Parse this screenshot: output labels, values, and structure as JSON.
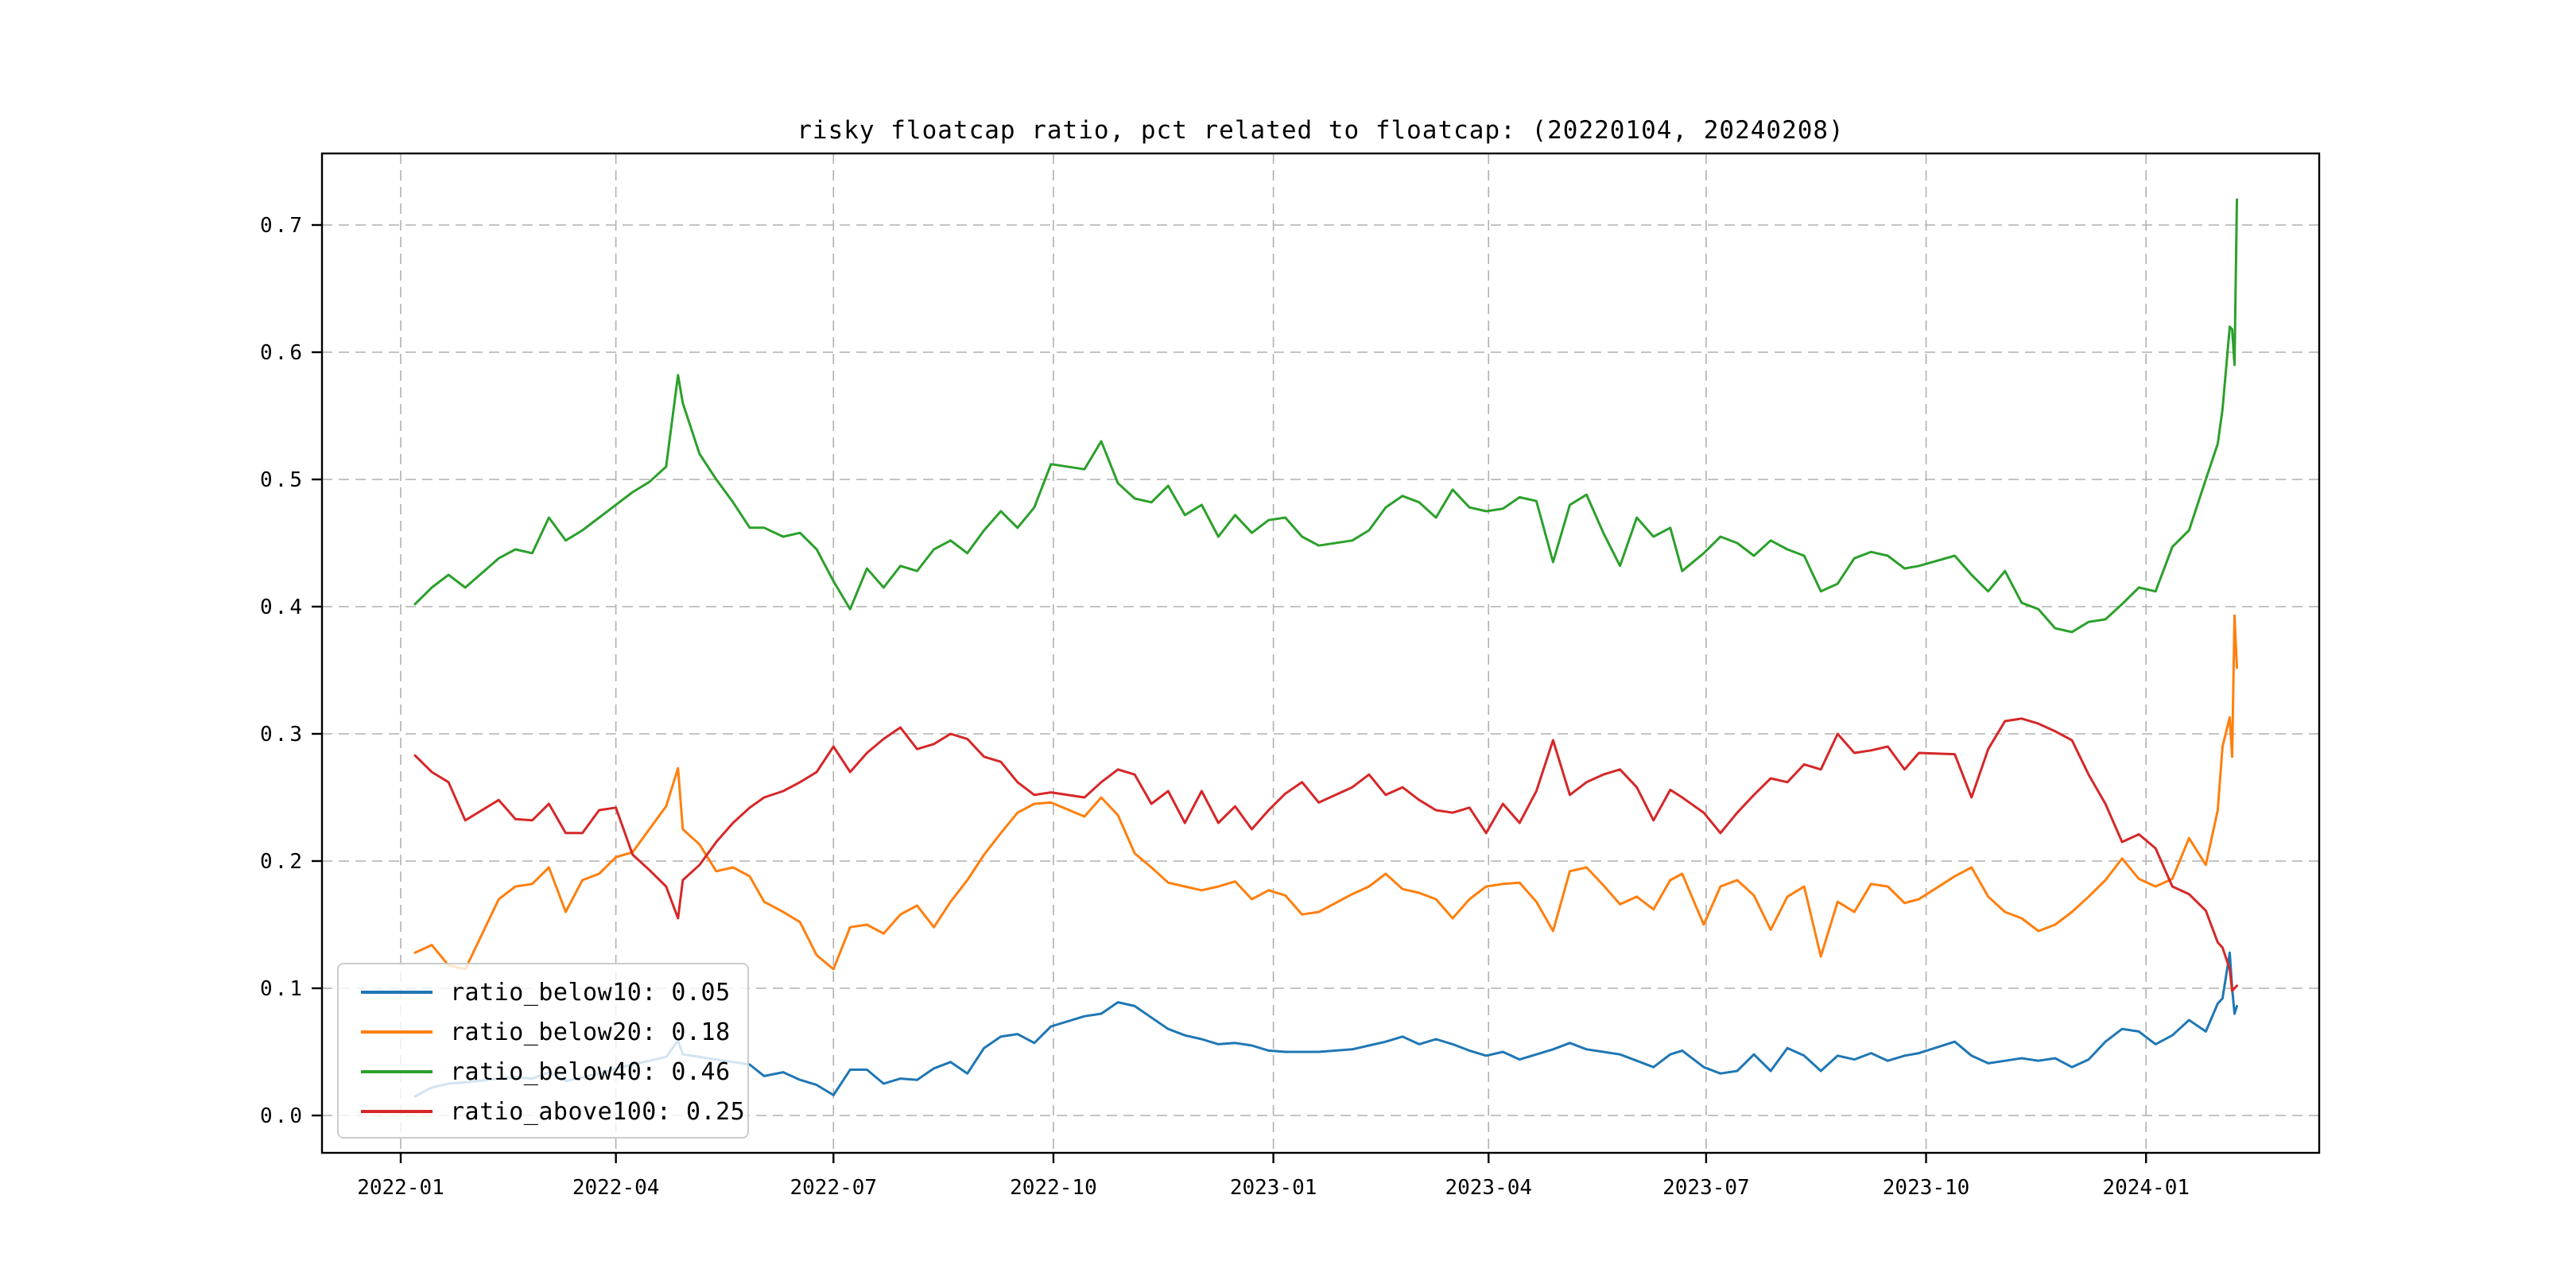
{
  "title": "risky floatcap ratio, pct related to floatcap: (20220104, 20240208)",
  "colors": {
    "blue": "#1f77b4",
    "orange": "#ff7f0e",
    "green": "#2ca02c",
    "red": "#d62728",
    "grid": "#b0b0b0",
    "spine": "#000000",
    "legend_border": "#cccccc"
  },
  "chart_data": {
    "type": "line",
    "title": "risky floatcap ratio, pct related to floatcap: (20220104, 20240208)",
    "xlabel": "",
    "ylabel": "",
    "grid": true,
    "legend_position": "lower left",
    "x_range_dates": [
      "2022-01-04",
      "2024-02-08"
    ],
    "ylim": [
      -0.029,
      0.756
    ],
    "y_ticks": [
      "0.0",
      "0.1",
      "0.2",
      "0.3",
      "0.4",
      "0.5",
      "0.6",
      "0.7"
    ],
    "x_ticks": [
      "2022-01",
      "2022-04",
      "2022-07",
      "2022-10",
      "2023-01",
      "2023-04",
      "2023-07",
      "2023-10",
      "2024-01"
    ],
    "dates": [
      "2022-01-07",
      "2022-01-14",
      "2022-01-21",
      "2022-01-28",
      "2022-02-11",
      "2022-02-18",
      "2022-02-25",
      "2022-03-04",
      "2022-03-11",
      "2022-03-18",
      "2022-03-25",
      "2022-04-01",
      "2022-04-08",
      "2022-04-15",
      "2022-04-22",
      "2022-04-27",
      "2022-04-29",
      "2022-05-06",
      "2022-05-13",
      "2022-05-20",
      "2022-05-27",
      "2022-06-02",
      "2022-06-10",
      "2022-06-17",
      "2022-06-24",
      "2022-07-01",
      "2022-07-08",
      "2022-07-15",
      "2022-07-22",
      "2022-07-29",
      "2022-08-05",
      "2022-08-12",
      "2022-08-19",
      "2022-08-26",
      "2022-09-02",
      "2022-09-09",
      "2022-09-16",
      "2022-09-23",
      "2022-09-30",
      "2022-10-14",
      "2022-10-21",
      "2022-10-28",
      "2022-11-04",
      "2022-11-11",
      "2022-11-18",
      "2022-11-25",
      "2022-12-02",
      "2022-12-09",
      "2022-12-16",
      "2022-12-23",
      "2022-12-30",
      "2023-01-06",
      "2023-01-13",
      "2023-01-20",
      "2023-02-03",
      "2023-02-10",
      "2023-02-17",
      "2023-02-24",
      "2023-03-03",
      "2023-03-10",
      "2023-03-17",
      "2023-03-24",
      "2023-03-31",
      "2023-04-07",
      "2023-04-14",
      "2023-04-21",
      "2023-04-28",
      "2023-05-05",
      "2023-05-12",
      "2023-05-19",
      "2023-05-26",
      "2023-06-02",
      "2023-06-09",
      "2023-06-16",
      "2023-06-21",
      "2023-06-30",
      "2023-07-07",
      "2023-07-14",
      "2023-07-21",
      "2023-07-28",
      "2023-08-04",
      "2023-08-11",
      "2023-08-18",
      "2023-08-25",
      "2023-09-01",
      "2023-09-08",
      "2023-09-15",
      "2023-09-22",
      "2023-09-28",
      "2023-10-13",
      "2023-10-20",
      "2023-10-27",
      "2023-11-03",
      "2023-11-10",
      "2023-11-17",
      "2023-11-24",
      "2023-12-01",
      "2023-12-08",
      "2023-12-15",
      "2023-12-22",
      "2023-12-29",
      "2024-01-05",
      "2024-01-12",
      "2024-01-19",
      "2024-01-26",
      "2024-01-31",
      "2024-02-02",
      "2024-02-05",
      "2024-02-06",
      "2024-02-07",
      "2024-02-08"
    ],
    "series": [
      {
        "name": "ratio_below10",
        "legend_label": "ratio_below10: 0.05",
        "color": "#1f77b4",
        "values": [
          0.015,
          0.022,
          0.025,
          0.026,
          0.029,
          0.03,
          0.029,
          0.034,
          0.027,
          0.03,
          0.033,
          0.037,
          0.04,
          0.043,
          0.046,
          0.059,
          0.048,
          0.046,
          0.044,
          0.042,
          0.04,
          0.031,
          0.034,
          0.028,
          0.024,
          0.016,
          0.036,
          0.036,
          0.025,
          0.029,
          0.028,
          0.037,
          0.042,
          0.033,
          0.053,
          0.062,
          0.064,
          0.057,
          0.07,
          0.078,
          0.08,
          0.089,
          0.086,
          0.077,
          0.068,
          0.063,
          0.06,
          0.056,
          0.057,
          0.055,
          0.051,
          0.05,
          0.05,
          0.05,
          0.052,
          0.055,
          0.058,
          0.062,
          0.056,
          0.06,
          0.056,
          0.051,
          0.047,
          0.05,
          0.044,
          0.048,
          0.052,
          0.057,
          0.052,
          0.05,
          0.048,
          0.043,
          0.038,
          0.048,
          0.051,
          0.038,
          0.033,
          0.035,
          0.048,
          0.035,
          0.053,
          0.047,
          0.035,
          0.047,
          0.044,
          0.049,
          0.043,
          0.047,
          0.049,
          0.058,
          0.047,
          0.041,
          0.043,
          0.045,
          0.043,
          0.045,
          0.038,
          0.044,
          0.058,
          0.068,
          0.066,
          0.056,
          0.063,
          0.075,
          0.066,
          0.088,
          0.092,
          0.128,
          0.1,
          0.08,
          0.086
        ]
      },
      {
        "name": "ratio_below20",
        "legend_label": "ratio_below20: 0.18",
        "color": "#ff7f0e",
        "values": [
          0.128,
          0.134,
          0.118,
          0.115,
          0.17,
          0.18,
          0.182,
          0.195,
          0.16,
          0.185,
          0.19,
          0.203,
          0.207,
          0.225,
          0.243,
          0.273,
          0.225,
          0.213,
          0.192,
          0.195,
          0.188,
          0.168,
          0.16,
          0.152,
          0.126,
          0.115,
          0.148,
          0.15,
          0.143,
          0.158,
          0.165,
          0.148,
          0.168,
          0.185,
          0.205,
          0.222,
          0.238,
          0.245,
          0.246,
          0.235,
          0.25,
          0.236,
          0.206,
          0.195,
          0.183,
          0.18,
          0.177,
          0.18,
          0.184,
          0.17,
          0.177,
          0.173,
          0.158,
          0.16,
          0.174,
          0.18,
          0.19,
          0.178,
          0.175,
          0.17,
          0.155,
          0.17,
          0.18,
          0.182,
          0.183,
          0.168,
          0.145,
          0.192,
          0.195,
          0.181,
          0.166,
          0.172,
          0.162,
          0.185,
          0.19,
          0.15,
          0.18,
          0.185,
          0.173,
          0.146,
          0.172,
          0.18,
          0.125,
          0.168,
          0.16,
          0.182,
          0.18,
          0.167,
          0.17,
          0.188,
          0.195,
          0.172,
          0.16,
          0.155,
          0.145,
          0.15,
          0.16,
          0.172,
          0.185,
          0.202,
          0.186,
          0.18,
          0.186,
          0.218,
          0.197,
          0.24,
          0.29,
          0.313,
          0.282,
          0.393,
          0.352
        ]
      },
      {
        "name": "ratio_below40",
        "legend_label": "ratio_below40: 0.46",
        "color": "#2ca02c",
        "values": [
          0.402,
          0.415,
          0.425,
          0.415,
          0.438,
          0.445,
          0.442,
          0.47,
          0.452,
          0.46,
          0.47,
          0.48,
          0.49,
          0.498,
          0.51,
          0.582,
          0.56,
          0.52,
          0.5,
          0.482,
          0.462,
          0.462,
          0.455,
          0.458,
          0.445,
          0.42,
          0.398,
          0.43,
          0.415,
          0.432,
          0.428,
          0.445,
          0.452,
          0.442,
          0.46,
          0.475,
          0.462,
          0.478,
          0.512,
          0.508,
          0.53,
          0.497,
          0.485,
          0.482,
          0.495,
          0.472,
          0.48,
          0.455,
          0.472,
          0.458,
          0.468,
          0.47,
          0.455,
          0.448,
          0.452,
          0.46,
          0.478,
          0.487,
          0.482,
          0.47,
          0.492,
          0.478,
          0.475,
          0.477,
          0.486,
          0.483,
          0.435,
          0.48,
          0.488,
          0.458,
          0.432,
          0.47,
          0.455,
          0.462,
          0.428,
          0.442,
          0.455,
          0.45,
          0.44,
          0.452,
          0.445,
          0.44,
          0.412,
          0.418,
          0.438,
          0.443,
          0.44,
          0.43,
          0.432,
          0.44,
          0.425,
          0.412,
          0.428,
          0.403,
          0.398,
          0.383,
          0.38,
          0.388,
          0.39,
          0.402,
          0.415,
          0.412,
          0.447,
          0.46,
          0.5,
          0.528,
          0.555,
          0.62,
          0.618,
          0.59,
          0.72
        ]
      },
      {
        "name": "ratio_above100",
        "legend_label": "ratio_above100: 0.25",
        "color": "#d62728",
        "values": [
          0.283,
          0.27,
          0.262,
          0.232,
          0.248,
          0.233,
          0.232,
          0.245,
          0.222,
          0.222,
          0.24,
          0.242,
          0.205,
          0.193,
          0.18,
          0.155,
          0.185,
          0.197,
          0.215,
          0.23,
          0.242,
          0.25,
          0.255,
          0.262,
          0.27,
          0.29,
          0.27,
          0.285,
          0.296,
          0.305,
          0.288,
          0.292,
          0.3,
          0.296,
          0.282,
          0.278,
          0.262,
          0.252,
          0.254,
          0.25,
          0.262,
          0.272,
          0.268,
          0.245,
          0.255,
          0.23,
          0.255,
          0.23,
          0.243,
          0.225,
          0.24,
          0.253,
          0.262,
          0.246,
          0.258,
          0.268,
          0.252,
          0.258,
          0.248,
          0.24,
          0.238,
          0.242,
          0.222,
          0.245,
          0.23,
          0.255,
          0.295,
          0.252,
          0.262,
          0.268,
          0.272,
          0.258,
          0.232,
          0.256,
          0.25,
          0.238,
          0.222,
          0.238,
          0.252,
          0.265,
          0.262,
          0.276,
          0.272,
          0.3,
          0.285,
          0.287,
          0.29,
          0.272,
          0.285,
          0.284,
          0.25,
          0.288,
          0.31,
          0.312,
          0.308,
          0.302,
          0.295,
          0.268,
          0.245,
          0.215,
          0.221,
          0.21,
          0.18,
          0.174,
          0.161,
          0.136,
          0.132,
          0.115,
          0.098,
          0.1,
          0.102
        ]
      }
    ]
  }
}
